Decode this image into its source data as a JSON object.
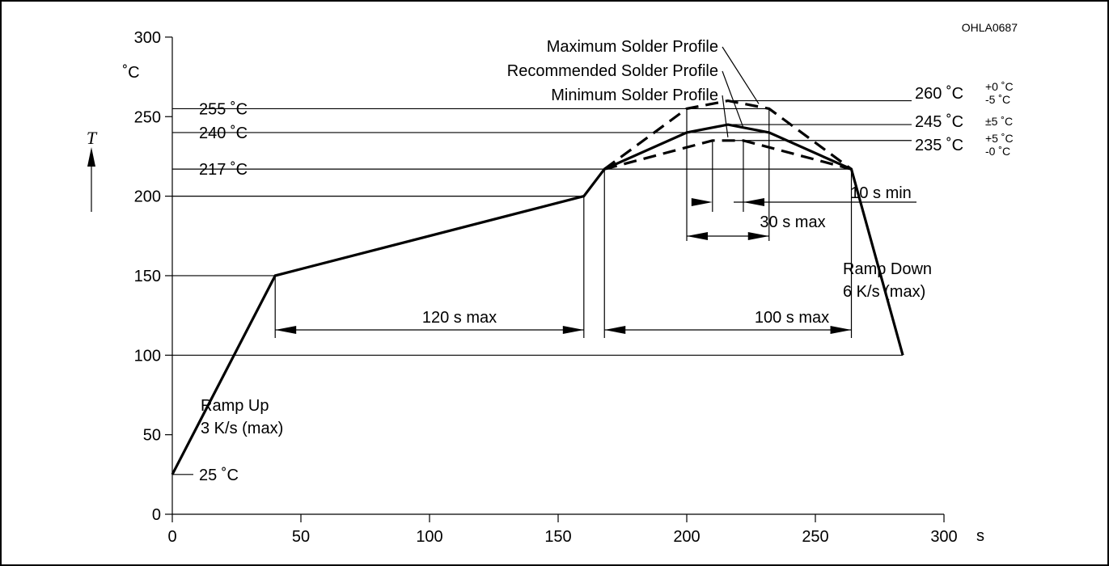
{
  "chart_data": {
    "type": "line",
    "figure_code": "OHLA0687",
    "x_unit": "s",
    "y_unit": "˚C",
    "y_symbol": "T",
    "xlim": [
      0,
      300
    ],
    "ylim": [
      0,
      300
    ],
    "x_ticks": [
      "0",
      "50",
      "100",
      "150",
      "200",
      "250",
      "300"
    ],
    "y_ticks": [
      "0",
      "50",
      "100",
      "150",
      "200",
      "250",
      "300"
    ],
    "grid": false,
    "series": [
      {
        "name": "Recommended Solder Profile",
        "style": "solid",
        "points": [
          [
            0,
            25
          ],
          [
            40,
            150
          ],
          [
            160,
            200
          ],
          [
            168,
            217
          ],
          [
            200,
            240
          ],
          [
            216,
            245
          ],
          [
            232,
            240
          ],
          [
            264,
            217
          ],
          [
            284,
            100
          ]
        ]
      },
      {
        "name": "Maximum Solder Profile",
        "style": "dashed",
        "points": [
          [
            168,
            217
          ],
          [
            200,
            255
          ],
          [
            216,
            260
          ],
          [
            232,
            255
          ],
          [
            264,
            217
          ]
        ]
      },
      {
        "name": "Minimum Solder Profile",
        "style": "dashed",
        "points": [
          [
            168,
            217
          ],
          [
            210,
            235
          ],
          [
            222,
            235
          ],
          [
            264,
            217
          ]
        ]
      }
    ],
    "temperature_labels": [
      {
        "text": "25 ˚C",
        "y": 25
      },
      {
        "text": "217 ˚C",
        "y": 217
      },
      {
        "text": "240 ˚C",
        "y": 240
      },
      {
        "text": "255 ˚C",
        "y": 255
      }
    ],
    "peak_labels": [
      {
        "value": "260 ˚C",
        "tol_top": "+0 ˚C",
        "tol_bottom": "-5 ˚C",
        "y": 260
      },
      {
        "value": "245 ˚C",
        "tol": "±5 ˚C",
        "y": 245
      },
      {
        "value": "235 ˚C",
        "tol_top": "+5 ˚C",
        "tol_bottom": "-0 ˚C",
        "y": 235
      }
    ],
    "annotations": {
      "ramp_up": [
        "Ramp Up",
        "3 K/s (max)"
      ],
      "ramp_down": [
        "Ramp Down",
        "6 K/s (max)"
      ],
      "preheat": "120 s max",
      "above_217": "100 s max",
      "peak_max": "30 s max",
      "peak_min": "10 s min"
    }
  }
}
